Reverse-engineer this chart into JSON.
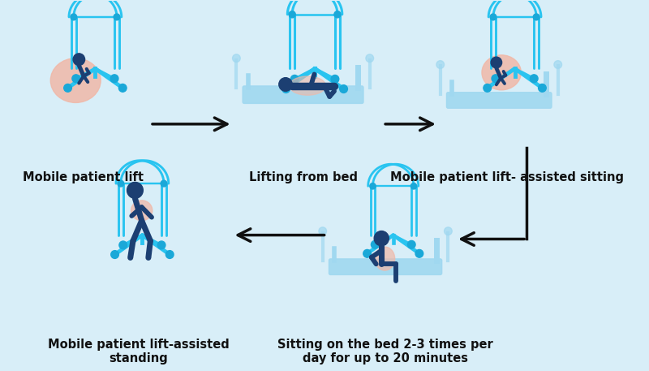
{
  "bg_color": "#d8eef8",
  "lift_color": "#29c4f0",
  "lift_dark": "#1aa8d8",
  "patient_color": "#1c3f72",
  "sling_color": "#f0b8a8",
  "bed_color": "#a0d8f0",
  "arrow_color": "#111111",
  "label_color": "#111111",
  "labels": [
    "Mobile patient lift",
    "Lifting from bed",
    "Mobile patient lift- assisted sitting",
    "Sitting on the bed 2-3 times per\nday for up to 20 minutes",
    "Mobile patient lift-assisted\nstanding"
  ],
  "label_bold": [
    false,
    false,
    false,
    false,
    true
  ],
  "label_fontsize": 10.5
}
